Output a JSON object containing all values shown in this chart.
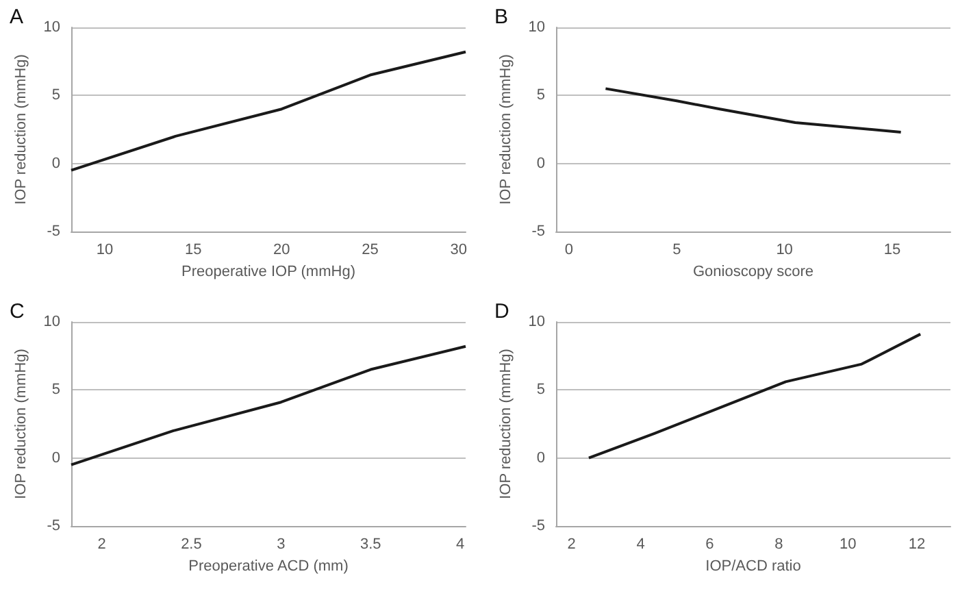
{
  "chart_data": [
    {
      "type": "line",
      "title": "A",
      "xlabel": "Preoperative IOP (mmHg)",
      "ylabel": "IOP reduction (mmHg)",
      "x": [
        8.1,
        14,
        20,
        25,
        30.4
      ],
      "values": [
        -0.5,
        2.0,
        4.0,
        6.5,
        8.2
      ],
      "color": "#1a1a1a",
      "xlim": [
        8.1,
        30.4
      ],
      "xticks": [
        10,
        15,
        20,
        25,
        30
      ],
      "ylim": [
        -5,
        10
      ],
      "yticks": [
        -5,
        0,
        5,
        10
      ],
      "grid": "y",
      "marker": "none"
    },
    {
      "type": "line",
      "title": "B",
      "xlabel": "Gonioscopy score",
      "ylabel": "IOP reduction (mmHg)",
      "x": [
        1.7,
        5,
        7,
        10.5,
        15.4
      ],
      "values": [
        5.5,
        4.6,
        4.0,
        3.0,
        2.3
      ],
      "color": "#1a1a1a",
      "xlim": [
        -0.6,
        17.7
      ],
      "xticks": [
        0,
        5,
        10,
        15
      ],
      "ylim": [
        -5,
        10
      ],
      "yticks": [
        -5,
        0,
        5,
        10
      ],
      "grid": "y",
      "marker": "none"
    },
    {
      "type": "line",
      "title": "C",
      "xlabel": "Preoperative ACD (mm)",
      "ylabel": "IOP reduction (mmHg)",
      "x": [
        1.83,
        2.4,
        3.0,
        3.5,
        4.03
      ],
      "values": [
        -0.5,
        2.0,
        4.1,
        6.5,
        8.2
      ],
      "color": "#1a1a1a",
      "xlim": [
        1.83,
        4.03
      ],
      "xticks": [
        2,
        2.5,
        3,
        3.5,
        4
      ],
      "ylim": [
        -5,
        10
      ],
      "yticks": [
        -5,
        0,
        5,
        10
      ],
      "grid": "y",
      "marker": "none"
    },
    {
      "type": "line",
      "title": "D",
      "xlabel": "IOP/ACD ratio",
      "ylabel": "IOP reduction (mmHg)",
      "x": [
        2.5,
        4.4,
        6.0,
        8.2,
        10.4,
        12.1
      ],
      "values": [
        0,
        1.8,
        3.4,
        5.6,
        6.9,
        9.1
      ],
      "color": "#1a1a1a",
      "xlim": [
        1.55,
        12.97
      ],
      "xticks": [
        2,
        4,
        6,
        8,
        10,
        12
      ],
      "ylim": [
        -5,
        10
      ],
      "yticks": [
        -5,
        0,
        5,
        10
      ],
      "grid": "y",
      "marker": "none"
    }
  ]
}
